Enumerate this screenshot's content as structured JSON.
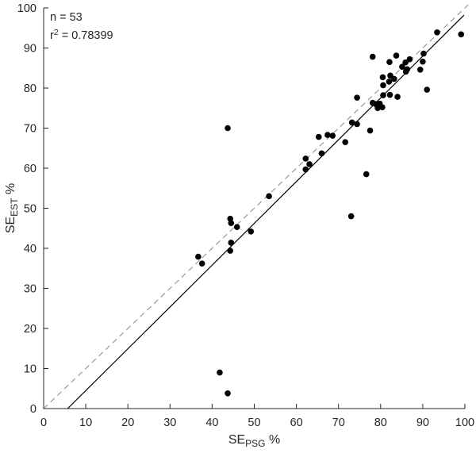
{
  "chart_data": {
    "type": "scatter",
    "title": "",
    "xlabel": {
      "prefix": "SE",
      "sub": "PSG",
      "suffix": " %"
    },
    "ylabel": {
      "prefix": "SE",
      "sub": "EST",
      "suffix": " %"
    },
    "xlim": [
      0,
      100
    ],
    "ylim": [
      0,
      100
    ],
    "xticks": [
      0,
      10,
      20,
      30,
      40,
      50,
      60,
      70,
      80,
      90,
      100
    ],
    "yticks": [
      0,
      10,
      20,
      30,
      40,
      50,
      60,
      70,
      80,
      90,
      100
    ],
    "grid": false,
    "legend": "none",
    "axis_color": "#262626",
    "marker": {
      "shape": "circle",
      "color": "#000000",
      "radius": 3.8
    },
    "annotation": {
      "n_label": "n = 53",
      "r2_label": {
        "base": "r",
        "sup": "2",
        "rest": " = 0.78399"
      },
      "n_value": 53,
      "r_squared_value": 0.78399
    },
    "identity_line": {
      "style": "dashed",
      "color": "#999999",
      "from": [
        0,
        0
      ],
      "to": [
        100.8,
        100.8
      ]
    },
    "regression_line": {
      "style": "solid",
      "color": "#000000",
      "from": [
        5.7,
        0
      ],
      "to": [
        99.8,
        98.2
      ]
    },
    "points": [
      [
        41.8,
        9.0
      ],
      [
        43.7,
        3.8
      ],
      [
        36.7,
        37.9
      ],
      [
        37.6,
        36.2
      ],
      [
        44.3,
        47.4
      ],
      [
        44.5,
        46.3
      ],
      [
        45.9,
        45.3
      ],
      [
        49.2,
        44.2
      ],
      [
        44.5,
        41.4
      ],
      [
        44.3,
        39.4
      ],
      [
        43.7,
        70.0
      ],
      [
        53.5,
        53.0
      ],
      [
        62.2,
        62.4
      ],
      [
        63.1,
        61.0
      ],
      [
        62.2,
        59.7
      ],
      [
        65.3,
        67.8
      ],
      [
        67.4,
        68.3
      ],
      [
        68.6,
        68.1
      ],
      [
        66.0,
        63.7
      ],
      [
        71.6,
        66.5
      ],
      [
        73.2,
        71.4
      ],
      [
        74.4,
        71.0
      ],
      [
        74.4,
        77.6
      ],
      [
        77.5,
        69.4
      ],
      [
        76.6,
        58.5
      ],
      [
        73.0,
        48.0
      ],
      [
        78.1,
        76.3
      ],
      [
        78.8,
        76.0
      ],
      [
        79.8,
        76.1
      ],
      [
        79.3,
        75.0
      ],
      [
        80.4,
        75.2
      ],
      [
        80.5,
        82.7
      ],
      [
        82.3,
        83.1
      ],
      [
        83.2,
        82.3
      ],
      [
        80.6,
        80.7
      ],
      [
        82.0,
        81.6
      ],
      [
        80.6,
        78.2
      ],
      [
        82.2,
        78.3
      ],
      [
        84.0,
        77.8
      ],
      [
        85.1,
        85.3
      ],
      [
        86.0,
        84.1
      ],
      [
        86.3,
        84.7
      ],
      [
        89.4,
        84.6
      ],
      [
        78.1,
        87.8
      ],
      [
        83.7,
        88.1
      ],
      [
        82.1,
        86.5
      ],
      [
        85.9,
        86.4
      ],
      [
        86.9,
        87.2
      ],
      [
        90.2,
        88.6
      ],
      [
        90.0,
        86.6
      ],
      [
        91.0,
        79.6
      ],
      [
        93.4,
        93.9
      ],
      [
        99.1,
        93.4
      ]
    ]
  }
}
